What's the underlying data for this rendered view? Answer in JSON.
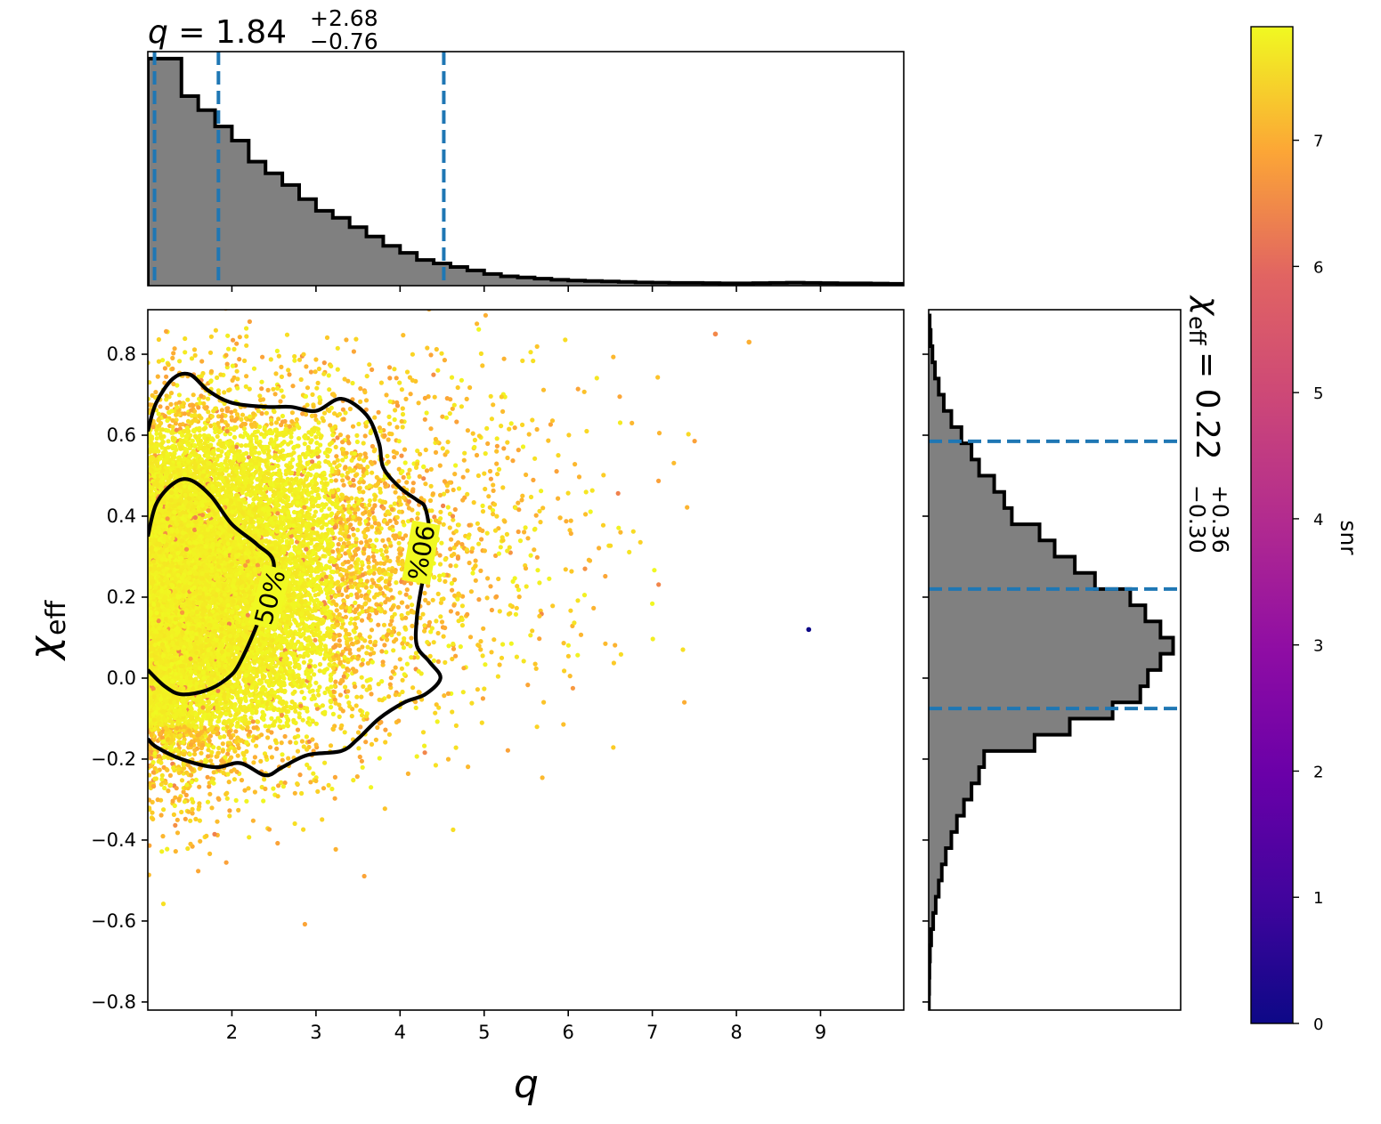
{
  "chart_data": {
    "type": "scatter",
    "x_param": "q",
    "y_param": "χ",
    "y_param_subscript": "eff",
    "color_param": "snr",
    "colormap": "plasma",
    "colorbar": {
      "label": "snr",
      "range": [
        0,
        7.9
      ],
      "ticks": [
        0,
        1,
        2,
        3,
        4,
        5,
        6,
        7
      ],
      "tick_labels": [
        "0",
        "1",
        "2",
        "3",
        "4",
        "5",
        "6",
        "7"
      ]
    },
    "scatter": {
      "xlim": [
        1.0,
        9.99
      ],
      "ylim": [
        -0.82,
        0.91
      ],
      "xticks": [
        2,
        3,
        4,
        5,
        6,
        7,
        8,
        9
      ],
      "xtick_labels": [
        "2",
        "3",
        "4",
        "5",
        "6",
        "7",
        "8",
        "9"
      ],
      "yticks": [
        0.8,
        0.6,
        0.4,
        0.2,
        0.0,
        -0.2,
        -0.4,
        -0.6,
        -0.8
      ],
      "ytick_labels": [
        "0.8",
        "0.6",
        "0.4",
        "0.2",
        "0.0",
        "−0.2",
        "−0.4",
        "−0.6",
        "−0.8"
      ],
      "xlabel": "q",
      "ylabel_symbol": "χ",
      "ylabel_subscript": "eff",
      "outlier_points": [
        {
          "x": 8.86,
          "y": 0.12,
          "snr": 0.0
        },
        {
          "x": 7.75,
          "y": 0.85,
          "snr": 5.6
        },
        {
          "x": 8.15,
          "y": 0.83,
          "snr": 6.5
        }
      ]
    },
    "contours": [
      {
        "label": "90%",
        "label_x": 4.25,
        "label_y": 0.31,
        "label_rotation": 100,
        "points": [
          [
            1.0,
            0.61
          ],
          [
            1.1,
            0.68
          ],
          [
            1.3,
            0.74
          ],
          [
            1.5,
            0.75
          ],
          [
            1.72,
            0.71
          ],
          [
            2.0,
            0.68
          ],
          [
            2.4,
            0.67
          ],
          [
            2.7,
            0.67
          ],
          [
            3.0,
            0.66
          ],
          [
            3.3,
            0.69
          ],
          [
            3.6,
            0.65
          ],
          [
            3.75,
            0.58
          ],
          [
            3.8,
            0.52
          ],
          [
            4.0,
            0.47
          ],
          [
            4.2,
            0.44
          ],
          [
            4.3,
            0.42
          ],
          [
            4.35,
            0.35
          ],
          [
            4.3,
            0.27
          ],
          [
            4.25,
            0.22
          ],
          [
            4.2,
            0.15
          ],
          [
            4.2,
            0.08
          ],
          [
            4.35,
            0.04
          ],
          [
            4.48,
            0.0
          ],
          [
            4.3,
            -0.04
          ],
          [
            4.05,
            -0.06
          ],
          [
            3.75,
            -0.1
          ],
          [
            3.5,
            -0.15
          ],
          [
            3.3,
            -0.18
          ],
          [
            2.9,
            -0.19
          ],
          [
            2.6,
            -0.22
          ],
          [
            2.4,
            -0.24
          ],
          [
            2.1,
            -0.21
          ],
          [
            1.8,
            -0.22
          ],
          [
            1.4,
            -0.2
          ],
          [
            1.1,
            -0.17
          ],
          [
            1.0,
            -0.15
          ]
        ]
      },
      {
        "label": "50%",
        "label_x": 2.45,
        "label_y": 0.2,
        "label_rotation": -75,
        "points": [
          [
            1.0,
            0.35
          ],
          [
            1.1,
            0.43
          ],
          [
            1.3,
            0.48
          ],
          [
            1.5,
            0.49
          ],
          [
            1.75,
            0.45
          ],
          [
            2.0,
            0.38
          ],
          [
            2.3,
            0.33
          ],
          [
            2.5,
            0.28
          ],
          [
            2.35,
            0.16
          ],
          [
            2.1,
            0.04
          ],
          [
            1.95,
            -0.0
          ],
          [
            1.7,
            -0.03
          ],
          [
            1.4,
            -0.04
          ],
          [
            1.2,
            -0.02
          ],
          [
            1.0,
            0.02
          ]
        ]
      }
    ],
    "top_histogram": {
      "title_value": "1.84",
      "title_plus": "+2.68",
      "title_minus": "−0.76",
      "median": 1.84,
      "lower": 1.08,
      "upper": 4.52,
      "bin_start": 1.0,
      "bin_width": 0.2,
      "counts": [
        0.97,
        0.97,
        0.81,
        0.75,
        0.68,
        0.62,
        0.53,
        0.48,
        0.43,
        0.37,
        0.32,
        0.29,
        0.25,
        0.21,
        0.17,
        0.14,
        0.11,
        0.095,
        0.08,
        0.065,
        0.05,
        0.04,
        0.035,
        0.03,
        0.025,
        0.022,
        0.02,
        0.018,
        0.016,
        0.014,
        0.013,
        0.012,
        0.012,
        0.011,
        0.01,
        0.01,
        0.011,
        0.012,
        0.013,
        0.012,
        0.011,
        0.01,
        0.01,
        0.009,
        0.008
      ]
    },
    "right_histogram": {
      "title_symbol": "χ",
      "title_subscript": "eff",
      "title_value": "= 0.22",
      "title_plus": "+0.36",
      "title_minus": "−0.30",
      "median": 0.22,
      "lower": -0.075,
      "upper": 0.585,
      "bin_start": -0.82,
      "bin_width": 0.04,
      "counts": [
        0.001,
        0.002,
        0.003,
        0.005,
        0.01,
        0.018,
        0.028,
        0.04,
        0.052,
        0.068,
        0.09,
        0.112,
        0.14,
        0.17,
        0.2,
        0.22,
        0.42,
        0.56,
        0.73,
        0.84,
        0.87,
        0.92,
        0.97,
        0.92,
        0.86,
        0.8,
        0.66,
        0.58,
        0.5,
        0.44,
        0.33,
        0.3,
        0.26,
        0.2,
        0.17,
        0.13,
        0.09,
        0.06,
        0.04,
        0.025,
        0.015,
        0.008,
        0.004
      ]
    }
  }
}
